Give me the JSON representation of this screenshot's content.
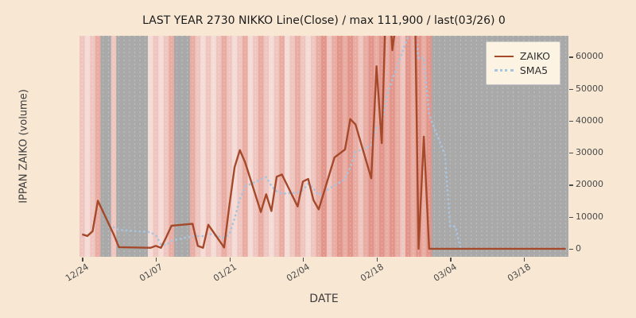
{
  "title": "LAST YEAR 2730 NIKKO Line(Close) / max 111,900 / last(03/26) 0",
  "xlabel": "DATE",
  "ylabel": "IPPAN ZAIKO (volume)",
  "legend": {
    "zaiko": "ZAIKO",
    "sma": "SMA5"
  },
  "chart_data": {
    "type": "line",
    "title": "LAST YEAR 2730 NIKKO Line(Close) / max 111,900 / last(03/26) 0",
    "xlabel": "DATE",
    "ylabel": "IPPAN ZAIKO (volume)",
    "ylim": [
      -2500,
      66500
    ],
    "n_days": 93,
    "max_value": 111900,
    "last_label": "last(03/26) 0",
    "legend_position": "upper right",
    "grid_color": "#ffffff",
    "y_ticks": [
      0,
      10000,
      20000,
      30000,
      40000,
      50000,
      60000
    ],
    "x_ticks": [
      {
        "label": "12/24",
        "i": 0
      },
      {
        "label": "01/07",
        "i": 14
      },
      {
        "label": "01/21",
        "i": 28
      },
      {
        "label": "02/04",
        "i": 42
      },
      {
        "label": "02/18",
        "i": 56
      },
      {
        "label": "03/04",
        "i": 70
      },
      {
        "label": "03/18",
        "i": 84
      }
    ],
    "series": [
      {
        "name": "ZAIKO",
        "style": "solid",
        "color": "#a5492b",
        "points": [
          [
            "12/24",
            0,
            4500
          ],
          [
            "12/25",
            1,
            4000
          ],
          [
            "12/26",
            2,
            5500
          ],
          [
            "12/27",
            3,
            15000
          ],
          [
            "12/30",
            6,
            4500
          ],
          [
            "12/31",
            7,
            500
          ],
          [
            "01/06",
            13,
            300
          ],
          [
            "01/07",
            14,
            900
          ],
          [
            "01/08",
            15,
            300
          ],
          [
            "01/09",
            16,
            3600
          ],
          [
            "01/10",
            17,
            7200
          ],
          [
            "01/14",
            21,
            7800
          ],
          [
            "01/15",
            22,
            900
          ],
          [
            "01/16",
            23,
            300
          ],
          [
            "01/17",
            24,
            7500
          ],
          [
            "01/20",
            27,
            400
          ],
          [
            "01/21",
            28,
            13500
          ],
          [
            "01/22",
            29,
            25500
          ],
          [
            "01/23",
            30,
            30800
          ],
          [
            "01/24",
            31,
            27000
          ],
          [
            "01/27",
            34,
            11500
          ],
          [
            "01/28",
            35,
            17000
          ],
          [
            "01/29",
            36,
            11800
          ],
          [
            "01/30",
            37,
            22500
          ],
          [
            "01/31",
            38,
            23200
          ],
          [
            "02/03",
            41,
            13200
          ],
          [
            "02/04",
            42,
            21000
          ],
          [
            "02/05",
            43,
            21800
          ],
          [
            "02/06",
            44,
            15200
          ],
          [
            "02/07",
            45,
            12300
          ],
          [
            "02/10",
            48,
            28500
          ],
          [
            "02/12",
            50,
            31000
          ],
          [
            "02/13",
            51,
            40500
          ],
          [
            "02/14",
            52,
            38800
          ],
          [
            "02/17",
            55,
            22000
          ],
          [
            "02/18",
            56,
            57000
          ],
          [
            "02/19",
            57,
            33000
          ],
          [
            "02/20",
            58,
            90000
          ],
          [
            "02/21",
            59,
            62000
          ],
          [
            "02/25",
            63,
            111900
          ],
          [
            "02/26",
            64,
            0
          ],
          [
            "02/27",
            65,
            35000
          ],
          [
            "02/28",
            66,
            0
          ],
          [
            "03/03",
            69,
            0
          ],
          [
            "03/04",
            70,
            0
          ],
          [
            "03/05",
            71,
            0
          ],
          [
            "03/06",
            72,
            0
          ],
          [
            "03/07",
            73,
            0
          ],
          [
            "03/10",
            76,
            0
          ],
          [
            "03/11",
            77,
            0
          ],
          [
            "03/12",
            78,
            0
          ],
          [
            "03/13",
            79,
            0
          ],
          [
            "03/14",
            80,
            0
          ],
          [
            "03/17",
            83,
            0
          ],
          [
            "03/18",
            84,
            0
          ],
          [
            "03/19",
            85,
            0
          ],
          [
            "03/21",
            87,
            0
          ],
          [
            "03/24",
            90,
            0
          ],
          [
            "03/25",
            91,
            0
          ],
          [
            "03/26",
            92,
            0
          ]
        ]
      },
      {
        "name": "SMA5",
        "style": "dotted",
        "color": "#a8c4de",
        "derived": "5-day moving average of ZAIKO",
        "window": 5
      }
    ],
    "background_bands": {
      "palette": {
        "L": "#f5dbd6",
        "M": "#efc6bf",
        "S": "#e8aca3",
        "R": "#e2958a",
        "G": "#a9a9a9"
      },
      "pattern": "MLMSGGMGGGGGGLMLMSGGGSMLMLMSMLMSLMSMLMSLMSMLMSRMSRSRSMSRSRSRSMRSRSRGGGGGGGGGGGGGGGGGGGGGGGGGG"
    }
  }
}
